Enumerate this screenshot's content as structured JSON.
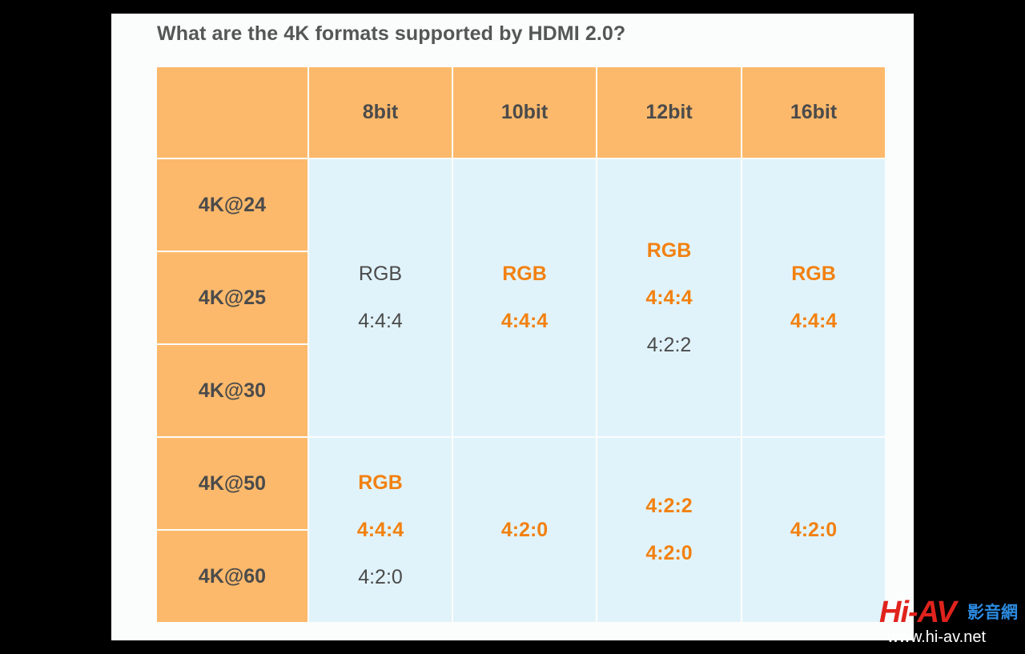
{
  "title": "What are the 4K formats supported by HDMI 2.0?",
  "table": {
    "corner": "",
    "columns": [
      "8bit",
      "10bit",
      "12bit",
      "16bit"
    ],
    "rows": [
      "4K@24",
      "4K@25",
      "4K@30",
      "4K@50",
      "4K@60"
    ],
    "groups": [
      {
        "rows": [
          "4K@24",
          "4K@25",
          "4K@30"
        ],
        "cells": [
          [
            {
              "text": "RGB",
              "highlight": false
            },
            {
              "text": "4:4:4",
              "highlight": false
            }
          ],
          [
            {
              "text": "RGB",
              "highlight": true
            },
            {
              "text": "4:4:4",
              "highlight": true
            }
          ],
          [
            {
              "text": "RGB",
              "highlight": true
            },
            {
              "text": "4:4:4",
              "highlight": true
            },
            {
              "text": "4:2:2",
              "highlight": false
            }
          ],
          [
            {
              "text": "RGB",
              "highlight": true
            },
            {
              "text": "4:4:4",
              "highlight": true
            }
          ]
        ]
      },
      {
        "rows": [
          "4K@50",
          "4K@60"
        ],
        "cells": [
          [
            {
              "text": "RGB",
              "highlight": true
            },
            {
              "text": "4:4:4",
              "highlight": true
            },
            {
              "text": "4:2:0",
              "highlight": false
            }
          ],
          [
            {
              "text": "4:2:0",
              "highlight": true
            }
          ],
          [
            {
              "text": "4:2:2",
              "highlight": true
            },
            {
              "text": "4:2:0",
              "highlight": true
            }
          ],
          [
            {
              "text": "4:2:0",
              "highlight": true
            }
          ]
        ]
      }
    ]
  },
  "watermark": {
    "brand": "Hi-AV",
    "chinese": "影音網",
    "url": "www.hi-av.net"
  },
  "colors": {
    "header_bg": "#fdb96b",
    "body_bg": "#e1f3fa",
    "highlight_text": "#f28110",
    "text": "#4b4b4b"
  }
}
